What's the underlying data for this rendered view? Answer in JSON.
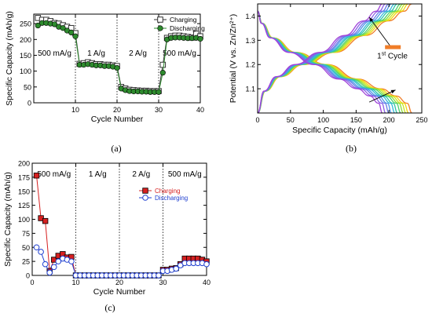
{
  "panel_labels": [
    "(a)",
    "(b)",
    "(c)"
  ],
  "chart_data": [
    {
      "id": "a",
      "type": "scatter",
      "xlabel": "Cycle Number",
      "ylabel": "Specific Capacity (mAh/g)",
      "xlim": [
        0,
        40
      ],
      "ylim": [
        0,
        280
      ],
      "xticks": [
        10,
        20,
        30,
        40
      ],
      "yticks": [
        0,
        50,
        100,
        150,
        200,
        250
      ],
      "vlines": [
        10,
        20,
        30
      ],
      "annotations": [
        "500 mA/g",
        "1 A/g",
        "2 A/g",
        "500 mA/g"
      ],
      "legend_position": "top-right",
      "colors": {
        "charging": "#333333",
        "discharging": "#2e8b2e"
      },
      "x": [
        1,
        2,
        3,
        4,
        5,
        6,
        7,
        8,
        9,
        10,
        11,
        12,
        13,
        14,
        15,
        16,
        17,
        18,
        19,
        20,
        21,
        22,
        23,
        24,
        25,
        26,
        27,
        28,
        29,
        30,
        31,
        32,
        33,
        34,
        35,
        36,
        37,
        38,
        39,
        40
      ],
      "series": [
        {
          "name": "Charging",
          "marker": "open-square",
          "values": [
            268,
            262,
            262,
            258,
            252,
            250,
            245,
            240,
            236,
            220,
            123,
            125,
            128,
            125,
            122,
            122,
            120,
            120,
            118,
            116,
            50,
            45,
            41,
            40,
            39,
            38,
            38,
            37,
            37,
            37,
            120,
            205,
            210,
            212,
            212,
            210,
            208,
            206,
            218,
            210
          ]
        },
        {
          "name": "Discharging",
          "marker": "filled-circle",
          "values": [
            244,
            252,
            252,
            250,
            248,
            240,
            236,
            228,
            222,
            210,
            120,
            120,
            122,
            120,
            118,
            118,
            116,
            116,
            114,
            110,
            45,
            40,
            37,
            36,
            36,
            35,
            35,
            34,
            34,
            34,
            95,
            200,
            205,
            206,
            206,
            205,
            204,
            204,
            205,
            202
          ]
        }
      ]
    },
    {
      "id": "b",
      "type": "line",
      "xlabel": "Specific Capacity (mAh/g)",
      "ylabel": "Potential (V vs. Zn/Zn²⁺)",
      "xlim": [
        0,
        250
      ],
      "ylim": [
        1.0,
        1.45
      ],
      "xticks": [
        0,
        50,
        100,
        150,
        200,
        250
      ],
      "yticks": [
        1.1,
        1.2,
        1.3,
        1.4
      ],
      "legend_position": "right",
      "legend_label": "Cycle",
      "legend_sup": "st",
      "legend_prefix": "1",
      "legend_color": "#f07d28",
      "capacities": [
        235,
        230,
        226,
        222,
        218,
        213,
        209,
        204,
        200,
        195,
        190
      ],
      "curve_colors": [
        "#f07d28",
        "#f4d60e",
        "#c8e623",
        "#8fde3a",
        "#4fd16d",
        "#2fc6a7",
        "#36b9da",
        "#4c98e6",
        "#6a7be8",
        "#8a5fe6",
        "#a043d8"
      ],
      "charge_shape": {
        "u": [
          0,
          0.05,
          0.15,
          0.3,
          0.5,
          0.7,
          0.85,
          0.95,
          1.0
        ],
        "v": [
          1.0,
          1.09,
          1.15,
          1.2,
          1.25,
          1.32,
          1.38,
          1.42,
          1.45
        ]
      },
      "discharge_shape": {
        "u": [
          0,
          0.03,
          0.1,
          0.25,
          0.45,
          0.65,
          0.8,
          0.9,
          0.97,
          1.0
        ],
        "v": [
          1.42,
          1.37,
          1.31,
          1.25,
          1.2,
          1.14,
          1.1,
          1.07,
          1.04,
          1.0
        ]
      }
    },
    {
      "id": "c",
      "type": "scatter",
      "xlabel": "Cycle Number",
      "ylabel": "Specific Capacity (mAh/g)",
      "xlim": [
        0,
        40
      ],
      "ylim": [
        0,
        200
      ],
      "xticks": [
        0,
        10,
        20,
        30,
        40
      ],
      "yticks": [
        0,
        25,
        50,
        75,
        100,
        125,
        150,
        175,
        200
      ],
      "vlines": [
        10,
        20,
        30
      ],
      "annotations": [
        "500 mA/g",
        "1 A/g",
        "2 A/g",
        "500 mA/g"
      ],
      "legend_position": "right",
      "colors": {
        "charging": "#d62020",
        "discharging": "#1f3fd0"
      },
      "x": [
        1,
        2,
        3,
        4,
        5,
        6,
        7,
        8,
        9,
        10,
        11,
        12,
        13,
        14,
        15,
        16,
        17,
        18,
        19,
        20,
        21,
        22,
        23,
        24,
        25,
        26,
        27,
        28,
        29,
        30,
        31,
        32,
        33,
        34,
        35,
        36,
        37,
        38,
        39,
        40
      ],
      "series": [
        {
          "name": "Charging",
          "marker": "filled-square",
          "values": [
            178,
            102,
            97,
            8,
            28,
            35,
            38,
            32,
            33,
            0,
            0,
            0,
            0,
            0,
            0,
            0,
            0,
            0,
            0,
            0,
            0,
            0,
            0,
            0,
            0,
            0,
            0,
            0,
            0,
            10,
            10,
            12,
            13,
            20,
            30,
            30,
            30,
            30,
            28,
            25
          ]
        },
        {
          "name": "Discharging",
          "marker": "open-circle",
          "values": [
            50,
            42,
            20,
            5,
            15,
            25,
            30,
            28,
            25,
            0,
            0,
            0,
            0,
            0,
            0,
            0,
            0,
            0,
            0,
            0,
            0,
            0,
            0,
            0,
            0,
            0,
            0,
            0,
            0,
            8,
            8,
            10,
            12,
            18,
            22,
            22,
            22,
            22,
            22,
            20
          ]
        }
      ]
    }
  ]
}
